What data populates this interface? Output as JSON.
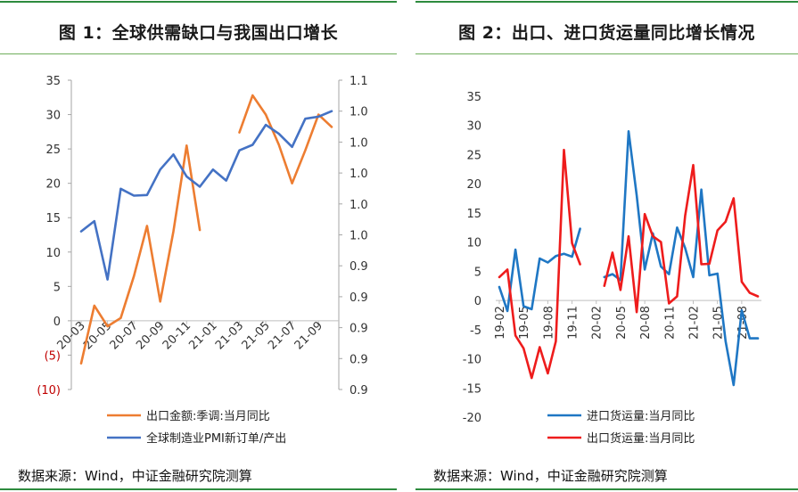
{
  "chart_data": [
    {
      "type": "line",
      "title": "图 1：全球供需缺口与我国出口增长",
      "source": "数据来源：Wind，中证金融研究院测算",
      "x": [
        "20-03",
        "20-04",
        "20-05",
        "20-06",
        "20-07",
        "20-08",
        "20-09",
        "20-10",
        "20-11",
        "20-12",
        "21-01",
        "21-02",
        "21-03",
        "21-04",
        "21-05",
        "21-06",
        "21-07",
        "21-08",
        "21-09",
        "21-10"
      ],
      "x_ticks": [
        "20-03",
        "20-05",
        "20-07",
        "20-09",
        "20-11",
        "21-01",
        "21-03",
        "21-05",
        "21-07",
        "21-09"
      ],
      "y_left_ticks": [
        "35",
        "30",
        "25",
        "20",
        "15",
        "10",
        "5",
        "0",
        "(5)",
        "(10)"
      ],
      "y_left_range": [
        -10,
        35
      ],
      "y_right_ticks": [
        "1.1",
        "1.0",
        "1.0",
        "1.0",
        "1.0",
        "1.0",
        "0.9",
        "0.9",
        "0.9",
        "0.9",
        "0.9"
      ],
      "y_right_range": [
        0.9,
        1.1
      ],
      "negative_label_color": "#c00000",
      "series": [
        {
          "name": "出口金额:季调:当月同比",
          "axis": "left",
          "color": "#ed7d31",
          "values": [
            -6.2,
            2.2,
            -0.8,
            0.4,
            6.5,
            13.8,
            2.8,
            13.0,
            25.5,
            13.2,
            null,
            null,
            27.4,
            32.8,
            30.0,
            25.6,
            20.0,
            24.8,
            30.0,
            28.2
          ]
        },
        {
          "name": "全球制造业PMI新订单/产出",
          "axis": "left",
          "color": "#4472c4",
          "values": [
            13.0,
            14.5,
            6.0,
            19.2,
            18.2,
            18.3,
            22.0,
            24.2,
            21.0,
            19.5,
            22.0,
            20.4,
            24.8,
            25.6,
            28.5,
            27.2,
            25.3,
            29.4,
            29.7,
            30.5
          ]
        }
      ]
    },
    {
      "type": "line",
      "title": "图 2：出口、进口货运量同比增长情况",
      "source": "数据来源：Wind，中证金融研究院测算",
      "x": [
        "19-02",
        "19-03",
        "19-04",
        "19-05",
        "19-06",
        "19-07",
        "19-08",
        "19-09",
        "19-10",
        "19-11",
        "19-12",
        "20-01",
        "20-02",
        "20-03",
        "20-04",
        "20-05",
        "20-06",
        "20-07",
        "20-08",
        "20-09",
        "20-10",
        "20-11",
        "20-12",
        "21-01",
        "21-02",
        "21-03",
        "21-04",
        "21-05",
        "21-06",
        "21-07",
        "21-08",
        "21-09",
        "21-10"
      ],
      "x_ticks": [
        "19-02",
        "19-05",
        "19-08",
        "19-11",
        "20-02",
        "20-05",
        "20-08",
        "20-11",
        "21-02",
        "21-05",
        "21-08"
      ],
      "y_ticks": [
        "35",
        "30",
        "25",
        "20",
        "15",
        "10",
        "5",
        "0",
        "-5",
        "-10",
        "-15",
        "-20"
      ],
      "y_range": [
        -20,
        35
      ],
      "series": [
        {
          "name": "进口货运量:当月同比",
          "color": "#1f77c4",
          "values": [
            2.3,
            -1.8,
            8.7,
            -1.0,
            -1.5,
            7.2,
            6.5,
            7.6,
            8.0,
            7.5,
            12.3,
            null,
            null,
            4.0,
            4.5,
            3.5,
            29.0,
            18.0,
            5.3,
            11.5,
            5.8,
            4.5,
            12.5,
            9.0,
            4.0,
            19.0,
            4.3,
            4.6,
            -7.0,
            -14.5,
            -1.7,
            -6.5,
            -6.5
          ]
        },
        {
          "name": "出口货运量:当月同比",
          "color": "#ee1c1c",
          "values": [
            4.0,
            5.3,
            -6.0,
            -8.2,
            -13.3,
            -8.0,
            -12.5,
            -7.0,
            25.8,
            9.8,
            6.2,
            null,
            null,
            2.5,
            8.2,
            1.8,
            11.0,
            -2.0,
            14.8,
            11.0,
            10.0,
            -0.5,
            0.7,
            14.5,
            23.2,
            6.2,
            6.3,
            12.0,
            13.5,
            17.5,
            3.2,
            1.3,
            0.7
          ]
        }
      ]
    }
  ]
}
